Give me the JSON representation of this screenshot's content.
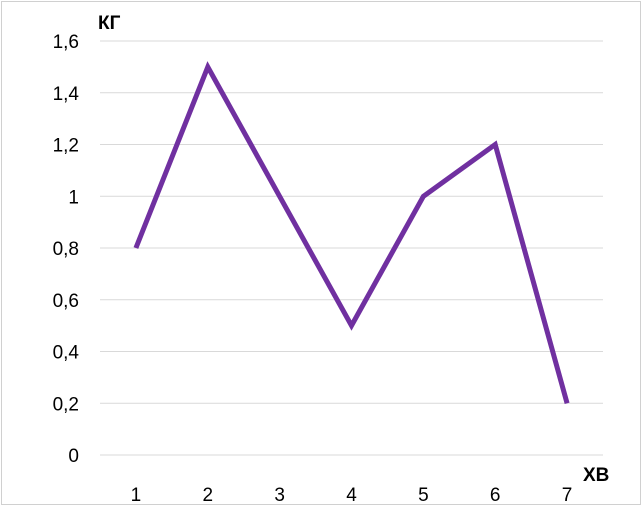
{
  "chart_data": {
    "type": "line",
    "x": [
      1,
      2,
      3,
      4,
      5,
      6,
      7
    ],
    "series": [
      {
        "values": [
          0.8,
          1.5,
          1.0,
          0.5,
          1.0,
          1.2,
          0.2
        ],
        "color": "#7030a0"
      }
    ],
    "xlabel": "ХВ",
    "ylabel": "КГ",
    "ylim": [
      0,
      1.6
    ],
    "yticks": [
      0,
      0.2,
      0.4,
      0.6,
      0.8,
      1,
      1.2,
      1.4,
      1.6
    ],
    "ytick_labels": [
      "0",
      "0,2",
      "0,4",
      "0,6",
      "0,8",
      "1",
      "1,2",
      "1,4",
      "1,6"
    ],
    "xtick_labels": [
      "1",
      "2",
      "3",
      "4",
      "5",
      "6",
      "7"
    ],
    "grid": true,
    "legend": "none"
  }
}
